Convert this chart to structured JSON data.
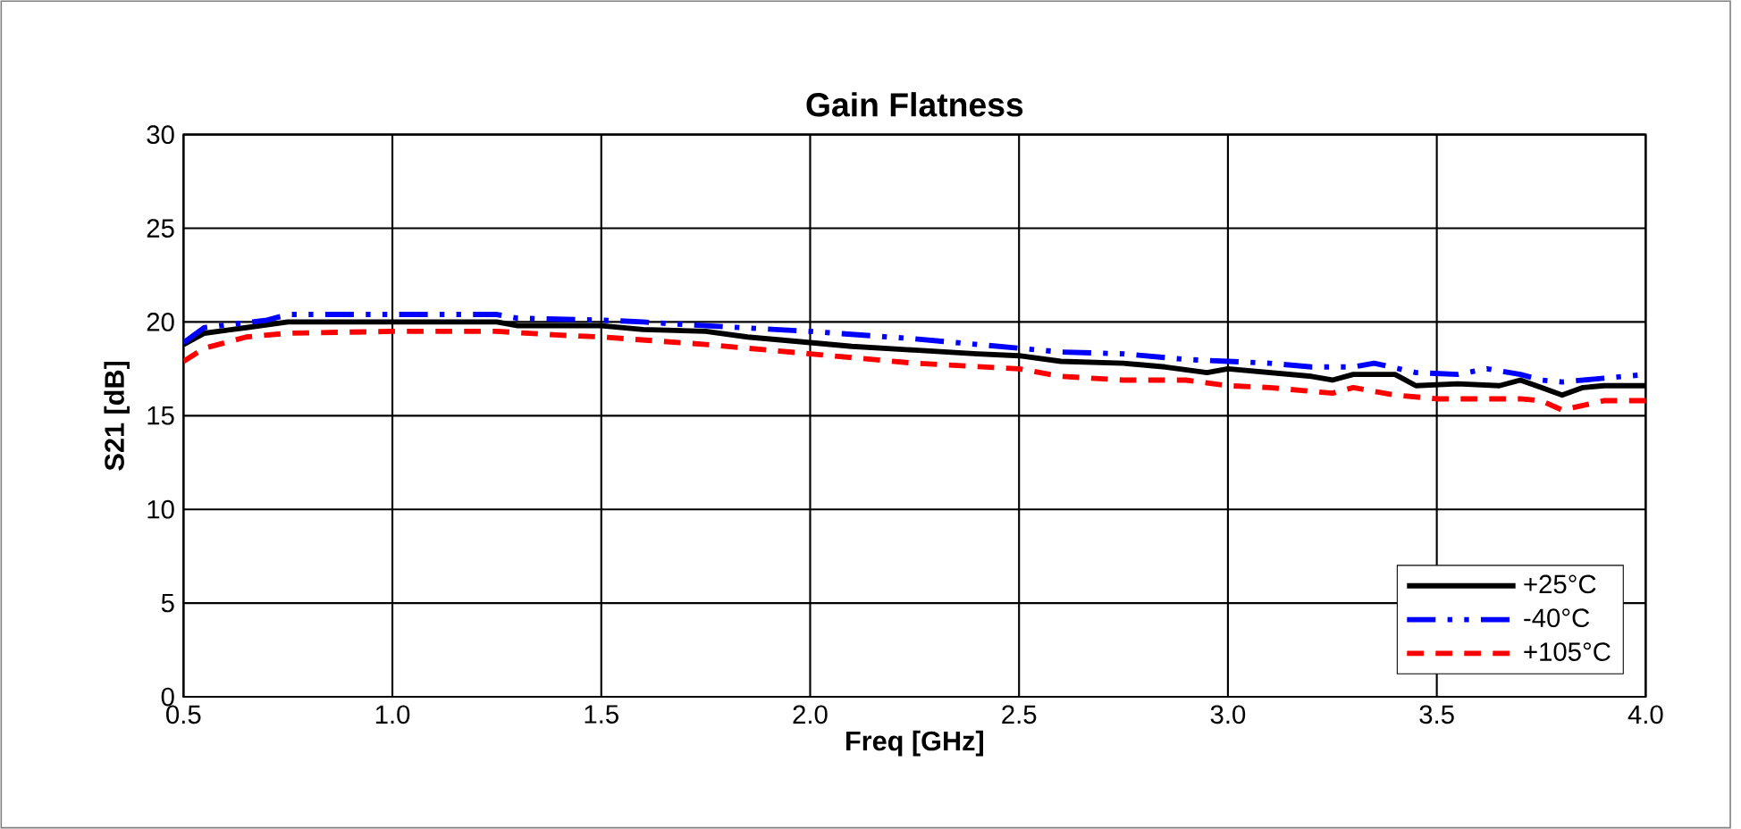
{
  "chart_data": {
    "type": "line",
    "title": "Gain Flatness",
    "xlabel": "Freq [GHz]",
    "ylabel": "S21 [dB]",
    "xlim": [
      0.5,
      4.0
    ],
    "xticks": [
      {
        "value": 0.5,
        "label": "0.5"
      },
      {
        "value": 1.0,
        "label": "1.0"
      },
      {
        "value": 1.5,
        "label": "1.5"
      },
      {
        "value": 2.0,
        "label": "2.0"
      },
      {
        "value": 2.5,
        "label": "2.5"
      },
      {
        "value": 3.0,
        "label": "3.0"
      },
      {
        "value": 3.5,
        "label": "3.5"
      },
      {
        "value": 4.0,
        "label": "4.0"
      }
    ],
    "ylim": [
      0,
      30
    ],
    "yticks": [
      0,
      5,
      10,
      15,
      20,
      25,
      30
    ],
    "grid": true,
    "legend": "bottom right",
    "marker": "none",
    "series": [
      {
        "name": "+25°C",
        "color": "#000000",
        "line_style": "solid",
        "x": [
          0.5,
          0.55,
          0.65,
          0.75,
          1.0,
          1.25,
          1.3,
          1.5,
          1.6,
          1.75,
          1.85,
          2.0,
          2.1,
          2.25,
          2.4,
          2.5,
          2.6,
          2.75,
          2.85,
          2.95,
          3.0,
          3.1,
          3.2,
          3.25,
          3.3,
          3.4,
          3.45,
          3.55,
          3.65,
          3.7,
          3.75,
          3.8,
          3.85,
          3.9,
          4.0
        ],
        "values": [
          18.8,
          19.4,
          19.7,
          20.0,
          20.0,
          20.0,
          19.8,
          19.8,
          19.6,
          19.5,
          19.2,
          18.9,
          18.7,
          18.5,
          18.3,
          18.2,
          17.9,
          17.8,
          17.6,
          17.3,
          17.5,
          17.3,
          17.1,
          16.9,
          17.2,
          17.2,
          16.6,
          16.7,
          16.6,
          16.9,
          16.5,
          16.1,
          16.5,
          16.6,
          16.6
        ]
      },
      {
        "name": "-40°C",
        "color": "#0000ff",
        "line_style": "dashdot",
        "x": [
          0.5,
          0.55,
          0.7,
          0.75,
          1.0,
          1.25,
          1.3,
          1.5,
          1.6,
          1.75,
          2.0,
          2.25,
          2.5,
          2.6,
          2.75,
          2.9,
          3.0,
          3.1,
          3.2,
          3.3,
          3.35,
          3.45,
          3.55,
          3.62,
          3.7,
          3.75,
          3.8,
          3.9,
          4.0
        ],
        "values": [
          18.9,
          19.7,
          20.1,
          20.4,
          20.4,
          20.4,
          20.2,
          20.1,
          20.0,
          19.8,
          19.5,
          19.1,
          18.6,
          18.4,
          18.3,
          18.0,
          17.9,
          17.8,
          17.6,
          17.6,
          17.8,
          17.3,
          17.2,
          17.5,
          17.2,
          16.9,
          16.8,
          17.0,
          17.2
        ]
      },
      {
        "name": "+105°C",
        "color": "#ff0000",
        "line_style": "dashed",
        "x": [
          0.5,
          0.55,
          0.65,
          0.75,
          1.0,
          1.25,
          1.4,
          1.5,
          1.75,
          2.0,
          2.25,
          2.5,
          2.6,
          2.75,
          2.9,
          3.0,
          3.1,
          3.25,
          3.3,
          3.4,
          3.5,
          3.6,
          3.7,
          3.75,
          3.8,
          3.9,
          4.0
        ],
        "values": [
          17.9,
          18.6,
          19.2,
          19.4,
          19.5,
          19.5,
          19.3,
          19.2,
          18.8,
          18.3,
          17.8,
          17.5,
          17.1,
          16.9,
          16.9,
          16.6,
          16.5,
          16.2,
          16.5,
          16.1,
          15.9,
          15.9,
          15.9,
          15.8,
          15.3,
          15.8,
          15.8
        ]
      }
    ]
  }
}
